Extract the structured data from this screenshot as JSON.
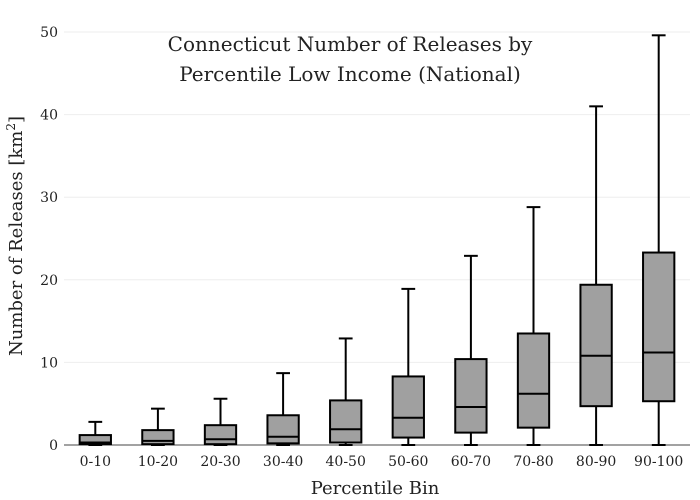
{
  "chart_data": {
    "type": "box",
    "title_lines": [
      "Connecticut Number of Releases by",
      "Percentile Low Income (National)"
    ],
    "xlabel": "Percentile Bin",
    "ylabel": "Number of Releases  [km",
    "ylabel_sup": "2",
    "ylabel_close": "]",
    "ylim": [
      0,
      50
    ],
    "yticks": [
      0,
      10,
      20,
      30,
      40,
      50
    ],
    "grid": true,
    "categories": [
      "0-10",
      "10-20",
      "20-30",
      "30-40",
      "40-50",
      "50-60",
      "60-70",
      "70-80",
      "80-90",
      "90-100"
    ],
    "boxes": [
      {
        "min": 0,
        "q1": 0.1,
        "median": 0.3,
        "q3": 1.2,
        "max": 2.8
      },
      {
        "min": 0,
        "q1": 0.1,
        "median": 0.5,
        "q3": 1.8,
        "max": 4.4
      },
      {
        "min": 0,
        "q1": 0.1,
        "median": 0.7,
        "q3": 2.4,
        "max": 5.6
      },
      {
        "min": 0,
        "q1": 0.2,
        "median": 1.0,
        "q3": 3.6,
        "max": 8.7
      },
      {
        "min": 0,
        "q1": 0.3,
        "median": 1.9,
        "q3": 5.4,
        "max": 12.9
      },
      {
        "min": 0,
        "q1": 0.9,
        "median": 3.3,
        "q3": 8.3,
        "max": 18.9
      },
      {
        "min": 0,
        "q1": 1.5,
        "median": 4.6,
        "q3": 10.4,
        "max": 22.9
      },
      {
        "min": 0,
        "q1": 2.1,
        "median": 6.2,
        "q3": 13.5,
        "max": 28.8
      },
      {
        "min": 0,
        "q1": 4.7,
        "median": 10.8,
        "q3": 19.4,
        "max": 41.0
      },
      {
        "min": 0,
        "q1": 5.3,
        "median": 11.2,
        "q3": 23.3,
        "max": 49.6
      }
    ],
    "colors": {
      "box_fill": "#a0a0a0",
      "line": "#000000",
      "grid": "#eeeeee"
    }
  }
}
